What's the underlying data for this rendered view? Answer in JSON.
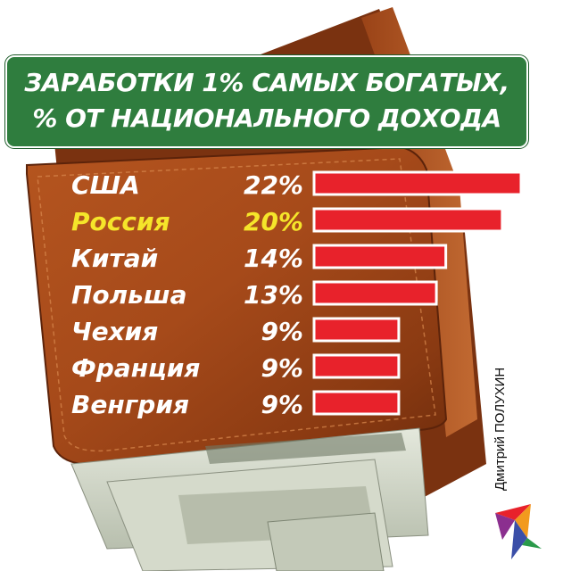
{
  "title": {
    "line1": "ЗАРАБОТКИ 1% САМЫХ БОГАТЫХ,",
    "line2": "% ОТ НАЦИОНАЛЬНОГО ДОХОДА"
  },
  "credit": "Дмитрий ПОЛУХИН",
  "colors": {
    "bar_fill": "#e8222b",
    "bar_border": "#ffffff",
    "label_default": "#ffffff",
    "label_highlight": "#f5e52a",
    "title_bg": "#2f7d3e"
  },
  "chart_data": {
    "type": "bar",
    "orientation": "horizontal",
    "title": "ЗАРАБОТКИ 1% САМЫХ БОГАТЫХ, % ОТ НАЦИОНАЛЬНОГО ДОХОДА",
    "categories": [
      "США",
      "Россия",
      "Китай",
      "Польша",
      "Чехия",
      "Франция",
      "Венгрия"
    ],
    "values": [
      22,
      20,
      14,
      13,
      9,
      9,
      9
    ],
    "value_labels": [
      "22%",
      "20%",
      "14%",
      "13%",
      "9%",
      "9%",
      "9%"
    ],
    "highlighted": [
      "Россия"
    ],
    "xlim": [
      0,
      22
    ],
    "grid": false,
    "legend": "none"
  }
}
